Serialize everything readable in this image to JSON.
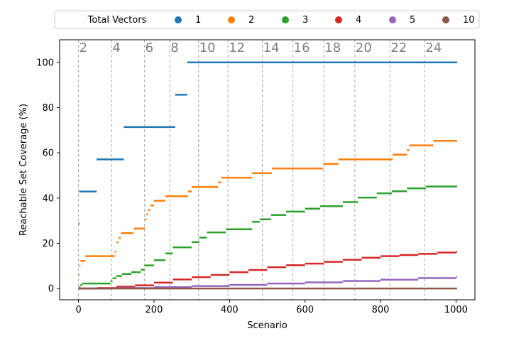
{
  "chart_data": {
    "type": "scatter",
    "title": "",
    "xlabel": "Scenario",
    "ylabel": "Reachable Set Coverage (%)",
    "xlim": [
      -50,
      1050
    ],
    "ylim": [
      -5,
      110
    ],
    "xticks": [
      0,
      200,
      400,
      600,
      800,
      1000
    ],
    "yticks": [
      0,
      20,
      40,
      60,
      80,
      100
    ],
    "grid": false,
    "legend": {
      "title": "Total Vectors",
      "placement": "top",
      "entries": [
        "1",
        "2",
        "3",
        "4",
        "5",
        "10"
      ]
    },
    "vlines": [
      {
        "x": 0,
        "label": "2"
      },
      {
        "x": 88,
        "label": "4"
      },
      {
        "x": 175,
        "label": "6"
      },
      {
        "x": 242,
        "label": "8"
      },
      {
        "x": 318,
        "label": "10"
      },
      {
        "x": 396,
        "label": "12"
      },
      {
        "x": 487,
        "label": "14"
      },
      {
        "x": 568,
        "label": "16"
      },
      {
        "x": 650,
        "label": "18"
      },
      {
        "x": 732,
        "label": "20"
      },
      {
        "x": 825,
        "label": "22"
      },
      {
        "x": 917,
        "label": "24"
      }
    ],
    "series": [
      {
        "name": "1",
        "color": "#1f77b4",
        "points": [
          [
            0,
            28.6
          ],
          [
            2,
            42.9
          ],
          [
            48,
            57.1
          ],
          [
            120,
            71.4
          ],
          [
            256,
            85.7
          ],
          [
            288,
            100
          ],
          [
            1000,
            100
          ]
        ]
      },
      {
        "name": "2",
        "color": "#ff7f0e",
        "points": [
          [
            0,
            6
          ],
          [
            2,
            10
          ],
          [
            5,
            12.2
          ],
          [
            18,
            14.3
          ],
          [
            96,
            16.3
          ],
          [
            100,
            20.4
          ],
          [
            106,
            22.4
          ],
          [
            112,
            24.5
          ],
          [
            146,
            26.5
          ],
          [
            176,
            30.6
          ],
          [
            180,
            32.7
          ],
          [
            184,
            34.7
          ],
          [
            190,
            36.7
          ],
          [
            200,
            38.8
          ],
          [
            230,
            40.8
          ],
          [
            290,
            42.9
          ],
          [
            300,
            44.9
          ],
          [
            370,
            46.9
          ],
          [
            378,
            49
          ],
          [
            460,
            51
          ],
          [
            512,
            53.1
          ],
          [
            648,
            55.1
          ],
          [
            688,
            57.1
          ],
          [
            832,
            59.2
          ],
          [
            870,
            61.2
          ],
          [
            876,
            63.3
          ],
          [
            940,
            65.3
          ],
          [
            1000,
            65.3
          ]
        ]
      },
      {
        "name": "3",
        "color": "#2ca02c",
        "points": [
          [
            0,
            0.5
          ],
          [
            5,
            1.5
          ],
          [
            10,
            2.2
          ],
          [
            75,
            2.2
          ],
          [
            85,
            3.2
          ],
          [
            90,
            4.5
          ],
          [
            100,
            5.5
          ],
          [
            115,
            6.4
          ],
          [
            140,
            7.2
          ],
          [
            165,
            8.3
          ],
          [
            175,
            10.2
          ],
          [
            200,
            12.5
          ],
          [
            230,
            15.5
          ],
          [
            250,
            18.2
          ],
          [
            300,
            20.5
          ],
          [
            320,
            22.5
          ],
          [
            340,
            24.8
          ],
          [
            390,
            26.2
          ],
          [
            460,
            29.5
          ],
          [
            480,
            30.6
          ],
          [
            510,
            32.5
          ],
          [
            550,
            34
          ],
          [
            600,
            35.3
          ],
          [
            640,
            36.4
          ],
          [
            700,
            38.2
          ],
          [
            740,
            40.2
          ],
          [
            790,
            42.1
          ],
          [
            830,
            43
          ],
          [
            870,
            44.3
          ],
          [
            920,
            45.1
          ],
          [
            1000,
            45.1
          ]
        ]
      },
      {
        "name": "4",
        "color": "#d62728",
        "points": [
          [
            0,
            0
          ],
          [
            50,
            0.2
          ],
          [
            100,
            0.8
          ],
          [
            150,
            1.4
          ],
          [
            200,
            2.6
          ],
          [
            250,
            4
          ],
          [
            300,
            5
          ],
          [
            350,
            6
          ],
          [
            400,
            7.2
          ],
          [
            450,
            8.2
          ],
          [
            500,
            9.4
          ],
          [
            550,
            10.3
          ],
          [
            600,
            11
          ],
          [
            650,
            11.8
          ],
          [
            700,
            12.7
          ],
          [
            750,
            13.6
          ],
          [
            800,
            14.3
          ],
          [
            850,
            14.8
          ],
          [
            900,
            15.3
          ],
          [
            950,
            15.9
          ],
          [
            1000,
            16.2
          ]
        ]
      },
      {
        "name": "5",
        "color": "#9467bd",
        "points": [
          [
            0,
            0
          ],
          [
            100,
            0.2
          ],
          [
            200,
            0.6
          ],
          [
            300,
            1.1
          ],
          [
            400,
            1.6
          ],
          [
            500,
            2.2
          ],
          [
            600,
            2.7
          ],
          [
            700,
            3.3
          ],
          [
            800,
            3.9
          ],
          [
            900,
            4.6
          ],
          [
            1000,
            5.2
          ]
        ]
      },
      {
        "name": "10",
        "color": "#8c564b",
        "points": [
          [
            0,
            0
          ],
          [
            1000,
            0
          ]
        ]
      }
    ]
  }
}
